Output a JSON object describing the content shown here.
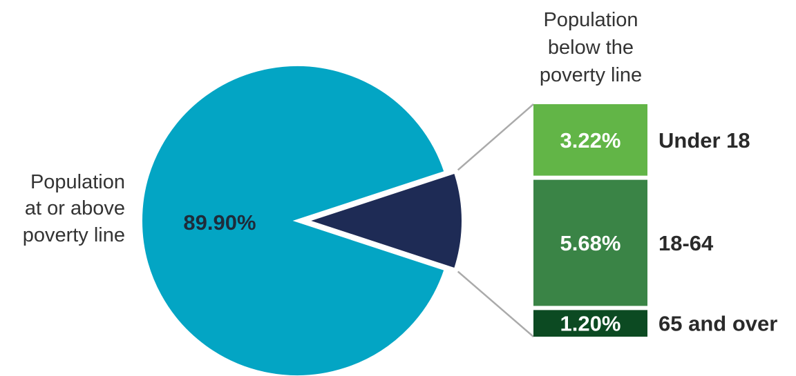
{
  "chart_data": {
    "type": "bar-of-pie",
    "pie": {
      "slices": [
        {
          "name": "Population at or above poverty line",
          "value": 89.9,
          "label": "89.90%",
          "color": "#03a5c4"
        },
        {
          "name": "Population below the poverty line",
          "value": 10.1,
          "label": "",
          "color": "#1e2b55"
        }
      ],
      "main_label_lines": [
        "Population",
        "at or above",
        "poverty line"
      ]
    },
    "bar": {
      "title_lines": [
        "Population",
        "below the",
        "poverty line"
      ],
      "segments": [
        {
          "category": "Under 18",
          "value": 3.22,
          "label": "3.22%",
          "color": "#62b547"
        },
        {
          "category": "18-64",
          "value": 5.68,
          "label": "5.68%",
          "color": "#3a8446"
        },
        {
          "category": "65 and over",
          "value": 1.2,
          "label": "1.20%",
          "color": "#0c4a22"
        }
      ]
    },
    "connector_color": "#aaaaaa"
  }
}
